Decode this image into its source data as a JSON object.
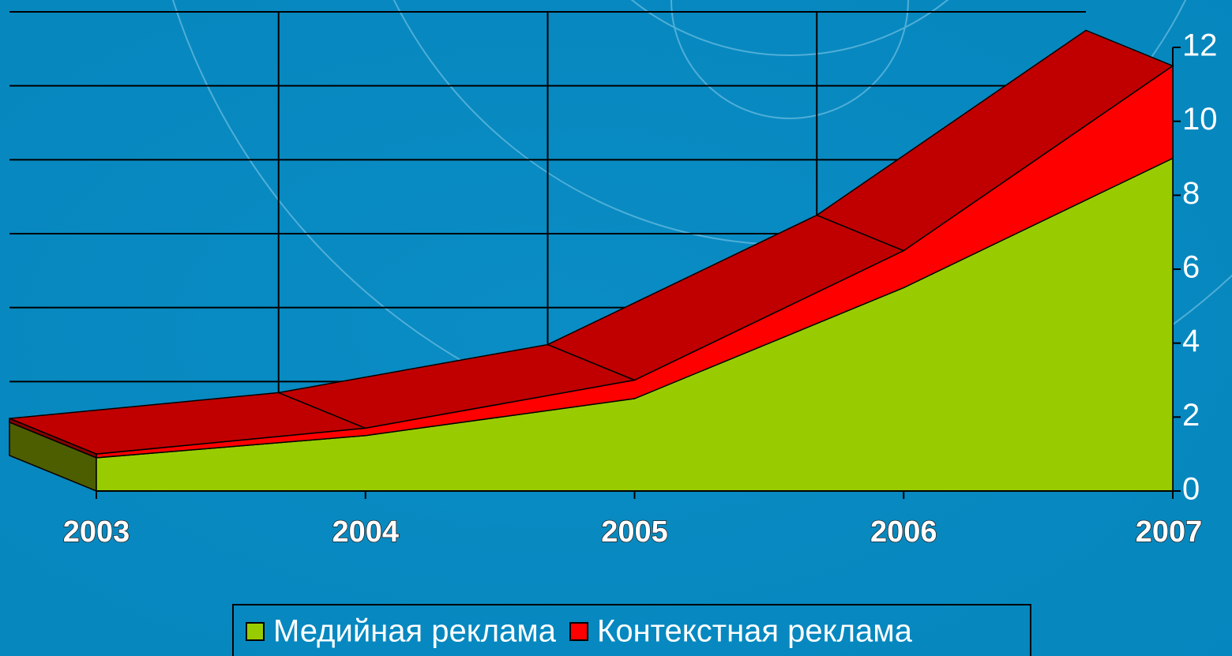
{
  "chart_data": {
    "type": "area3d",
    "categories": [
      "2003",
      "2004",
      "2005",
      "2006",
      "2007"
    ],
    "series": [
      {
        "name": "Медийная реклама",
        "color": "#99cc00",
        "values": [
          0.9,
          1.5,
          2.5,
          5.5,
          9.0
        ]
      },
      {
        "name": "Контекстная реклама",
        "color": "#ff0000",
        "values": [
          0.1,
          0.2,
          0.5,
          1.0,
          2.5
        ]
      }
    ],
    "ylim": [
      0,
      12
    ],
    "yticks": [
      0,
      2,
      4,
      6,
      8,
      10,
      12
    ],
    "grid": true,
    "stacked": true,
    "legend": "bottom"
  }
}
